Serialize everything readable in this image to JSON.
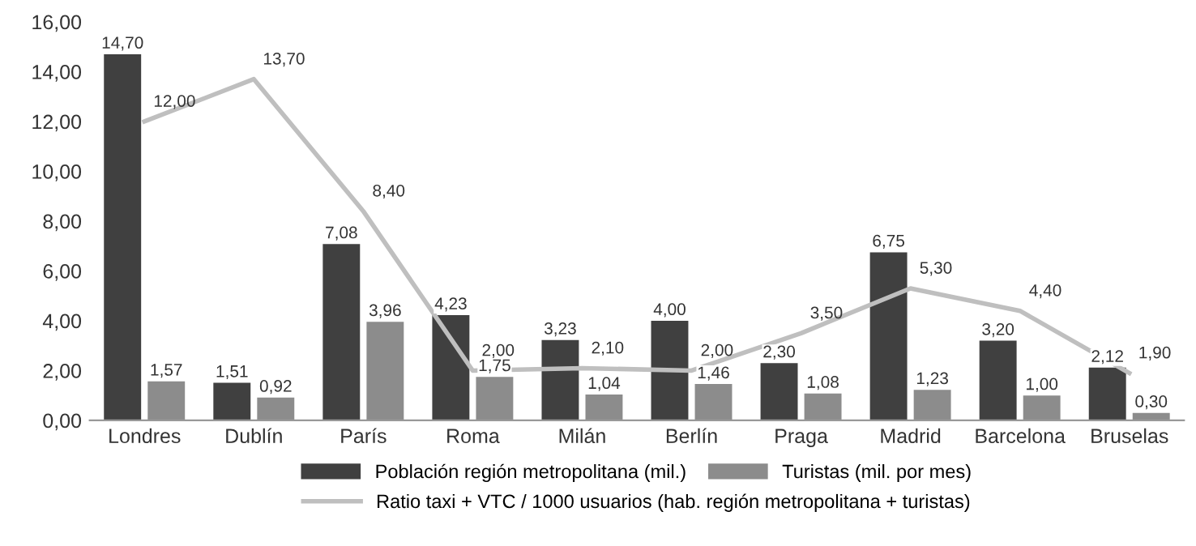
{
  "chart_data": {
    "type": "bar",
    "categories": [
      "Londres",
      "Dublín",
      "París",
      "Roma",
      "Milán",
      "Berlín",
      "Praga",
      "Madrid",
      "Barcelona",
      "Bruselas"
    ],
    "series": [
      {
        "name": "Población región metropolitana (mil.)",
        "color": "#404040",
        "values": [
          14.7,
          1.51,
          7.08,
          4.23,
          3.23,
          4.0,
          2.3,
          6.75,
          3.2,
          2.12
        ],
        "value_labels": [
          "14,70",
          "1,51",
          "7,08",
          "4,23",
          "3,23",
          "4,00",
          "2,30",
          "6,75",
          "3,20",
          "2,12"
        ]
      },
      {
        "name": "Turistas (mil. por mes)",
        "color": "#8c8c8c",
        "values": [
          1.57,
          0.92,
          3.96,
          1.75,
          1.04,
          1.46,
          1.08,
          1.23,
          1.0,
          0.3
        ],
        "value_labels": [
          "1,57",
          "0,92",
          "3,96",
          "1,75",
          "1,04",
          "1,46",
          "1,08",
          "1,23",
          "1,00",
          "0,30"
        ]
      },
      {
        "name": "Ratio taxi + VTC / 1000 usuarios (hab. región metropolitana + turistas)",
        "type": "line",
        "color": "#bfbfbf",
        "values": [
          12.0,
          13.7,
          8.4,
          2.0,
          2.1,
          2.0,
          3.5,
          5.3,
          4.4,
          1.9
        ],
        "value_labels": [
          "12,00",
          "13,70",
          "8,40",
          "2,00",
          "2,10",
          "2,00",
          "3,50",
          "5,30",
          "4,40",
          "1,90"
        ]
      }
    ],
    "ylim": [
      0,
      16
    ],
    "yticks": [
      {
        "value": 0,
        "label": "0,00"
      },
      {
        "value": 2,
        "label": "2,00"
      },
      {
        "value": 4,
        "label": "4,00"
      },
      {
        "value": 6,
        "label": "6,00"
      },
      {
        "value": 8,
        "label": "8,00"
      },
      {
        "value": 10,
        "label": "10,00"
      },
      {
        "value": 12,
        "label": "12,00"
      },
      {
        "value": 14,
        "label": "14,00"
      },
      {
        "value": 16,
        "label": "16,00"
      }
    ],
    "legend": "bottom",
    "grid": false
  }
}
